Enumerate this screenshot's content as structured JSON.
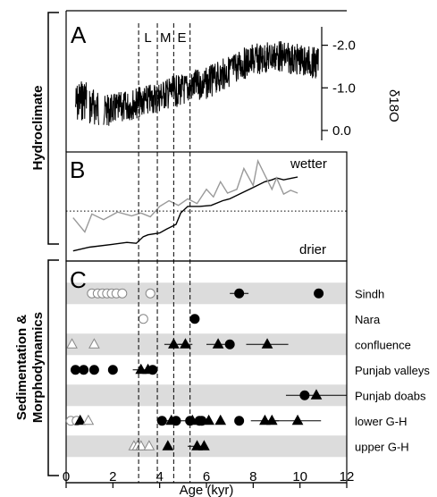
{
  "chart_data": {
    "type": "scatter",
    "x_axis": {
      "label": "Age (kyr)",
      "range": [
        0,
        12
      ],
      "ticks": [
        "0",
        "2",
        "4",
        "6",
        "8",
        "10",
        "12"
      ]
    },
    "era_markers": [
      {
        "label": "L",
        "from": 3.1,
        "to": 3.9
      },
      {
        "label": "M",
        "from": 3.9,
        "to": 4.6
      },
      {
        "label": "E",
        "from": 4.6,
        "to": 5.3
      }
    ],
    "group_labels": {
      "top": "Hydroclimate",
      "bottom_line1": "Sedimentation &",
      "bottom_line2": "Morphodynamics"
    },
    "panel_A": {
      "letter": "A",
      "axis_label": "δ18O",
      "y_range": [
        0.4,
        -2.6
      ],
      "y_ticks": [
        "-2.0",
        "-1.0",
        "0.0"
      ],
      "segment1": {
        "x_range": [
          0.4,
          0.9
        ],
        "level": -0.6
      },
      "segment2": {
        "x_range": [
          1.0,
          1.4
        ],
        "level": -0.55
      },
      "series": [
        {
          "x": [
            1.6,
            2.5,
            3.0,
            3.5,
            4.0,
            4.5,
            5.0,
            5.5,
            6.0,
            6.5,
            7.0,
            7.5,
            8.0,
            8.5,
            9.0,
            9.5,
            10.0,
            10.5,
            10.8
          ],
          "y": [
            -0.45,
            -0.55,
            -0.65,
            -0.7,
            -0.8,
            -0.9,
            -0.95,
            -1.05,
            -1.1,
            -1.25,
            -1.4,
            -1.55,
            -1.65,
            -1.7,
            -1.75,
            -1.7,
            -1.65,
            -1.6,
            -1.55
          ]
        }
      ]
    },
    "panel_B": {
      "letter": "B",
      "label_top": "wetter",
      "label_bottom": "drier",
      "y_range": [
        0,
        1
      ],
      "dotted_level": 0.47,
      "series": [
        {
          "color": "#000000",
          "x": [
            0.3,
            1.0,
            2.0,
            2.6,
            3.0,
            3.3,
            3.5,
            4.0,
            4.3,
            4.7,
            4.9,
            5.2,
            5.7,
            6.2,
            6.7,
            7.0,
            7.5,
            8.0,
            8.5,
            8.8,
            9.0,
            9.3,
            9.7,
            9.9
          ],
          "y": [
            0.05,
            0.09,
            0.12,
            0.14,
            0.13,
            0.2,
            0.22,
            0.24,
            0.28,
            0.33,
            0.45,
            0.52,
            0.52,
            0.53,
            0.58,
            0.6,
            0.66,
            0.72,
            0.78,
            0.8,
            0.82,
            0.8,
            0.82,
            0.83
          ]
        },
        {
          "color": "#999999",
          "x": [
            0.3,
            0.8,
            1.1,
            1.6,
            2.2,
            2.8,
            3.2,
            3.6,
            4.0,
            4.4,
            4.8,
            5.2,
            5.6,
            6.0,
            6.3,
            6.6,
            6.9,
            7.3,
            7.6,
            8.0,
            8.2,
            8.5,
            8.8,
            9.0,
            9.3,
            9.6,
            9.9
          ],
          "y": [
            0.4,
            0.25,
            0.44,
            0.38,
            0.46,
            0.42,
            0.45,
            0.41,
            0.52,
            0.58,
            0.53,
            0.6,
            0.55,
            0.7,
            0.62,
            0.78,
            0.66,
            0.7,
            0.92,
            0.74,
            1.0,
            0.85,
            0.7,
            0.82,
            0.65,
            0.69,
            0.66
          ]
        }
      ]
    },
    "panel_C": {
      "letter": "C",
      "rows": [
        {
          "label": "Sindh",
          "shaded": true,
          "points": [
            {
              "x": 1.1,
              "marker": "circle-open"
            },
            {
              "x": 1.35,
              "marker": "circle-open"
            },
            {
              "x": 1.55,
              "marker": "circle-open"
            },
            {
              "x": 1.75,
              "marker": "circle-open"
            },
            {
              "x": 1.95,
              "marker": "circle-open"
            },
            {
              "x": 2.15,
              "marker": "circle-open"
            },
            {
              "x": 2.4,
              "marker": "circle-open"
            },
            {
              "x": 3.6,
              "marker": "circle-open"
            },
            {
              "x": 7.4,
              "marker": "circle",
              "err": 0.4
            },
            {
              "x": 10.8,
              "marker": "circle"
            }
          ]
        },
        {
          "label": "Nara",
          "shaded": false,
          "points": [
            {
              "x": 3.3,
              "marker": "circle-open"
            },
            {
              "x": 5.5,
              "marker": "circle"
            }
          ]
        },
        {
          "label": "confluence",
          "shaded": true,
          "points": [
            {
              "x": 0.25,
              "marker": "triangle-open"
            },
            {
              "x": 1.2,
              "marker": "triangle-open"
            },
            {
              "x": 4.6,
              "marker": "triangle",
              "err": 0.4
            },
            {
              "x": 5.1,
              "marker": "triangle",
              "err": 0.3
            },
            {
              "x": 6.5,
              "marker": "triangle",
              "err": 0.5
            },
            {
              "x": 7.0,
              "marker": "circle"
            },
            {
              "x": 8.6,
              "marker": "triangle",
              "err": 0.9
            }
          ]
        },
        {
          "label": "Punjab valleys",
          "shaded": false,
          "points": [
            {
              "x": 0.4,
              "marker": "circle"
            },
            {
              "x": 0.75,
              "marker": "circle"
            },
            {
              "x": 1.2,
              "marker": "circle"
            },
            {
              "x": 2.0,
              "marker": "circle"
            },
            {
              "x": 3.2,
              "marker": "triangle",
              "err": 0.35
            },
            {
              "x": 3.5,
              "marker": "triangle"
            },
            {
              "x": 3.7,
              "marker": "circle"
            }
          ]
        },
        {
          "label": "Punjab doabs",
          "shaded": true,
          "points": [
            {
              "x": 10.2,
              "marker": "circle"
            },
            {
              "x": 10.7,
              "marker": "triangle",
              "err": 1.3
            }
          ]
        },
        {
          "label": "lower G-H",
          "shaded": false,
          "points": [
            {
              "x": 0.2,
              "marker": "circle-open"
            },
            {
              "x": 0.45,
              "marker": "circle-open"
            },
            {
              "x": 0.6,
              "marker": "triangle"
            },
            {
              "x": 0.95,
              "marker": "triangle-open"
            },
            {
              "x": 4.1,
              "marker": "circle"
            },
            {
              "x": 4.5,
              "marker": "triangle",
              "err": 0.6
            },
            {
              "x": 4.7,
              "marker": "circle"
            },
            {
              "x": 5.3,
              "marker": "circle"
            },
            {
              "x": 5.4,
              "marker": "triangle"
            },
            {
              "x": 5.7,
              "marker": "circle"
            },
            {
              "x": 5.8,
              "marker": "circle"
            },
            {
              "x": 6.1,
              "marker": "triangle"
            },
            {
              "x": 6.6,
              "marker": "triangle"
            },
            {
              "x": 7.4,
              "marker": "circle"
            },
            {
              "x": 8.5,
              "marker": "triangle",
              "err": 0.6
            },
            {
              "x": 8.8,
              "marker": "triangle"
            },
            {
              "x": 9.9,
              "marker": "triangle",
              "err": 1.0
            }
          ]
        },
        {
          "label": "upper G-H",
          "shaded": true,
          "points": [
            {
              "x": 2.9,
              "marker": "triangle-open"
            },
            {
              "x": 3.05,
              "marker": "triangle-open"
            },
            {
              "x": 3.2,
              "marker": "triangle-open"
            },
            {
              "x": 3.55,
              "marker": "triangle-open"
            },
            {
              "x": 4.35,
              "marker": "triangle"
            },
            {
              "x": 5.6,
              "marker": "triangle",
              "err": 0.4
            },
            {
              "x": 5.9,
              "marker": "triangle"
            }
          ]
        }
      ]
    }
  }
}
